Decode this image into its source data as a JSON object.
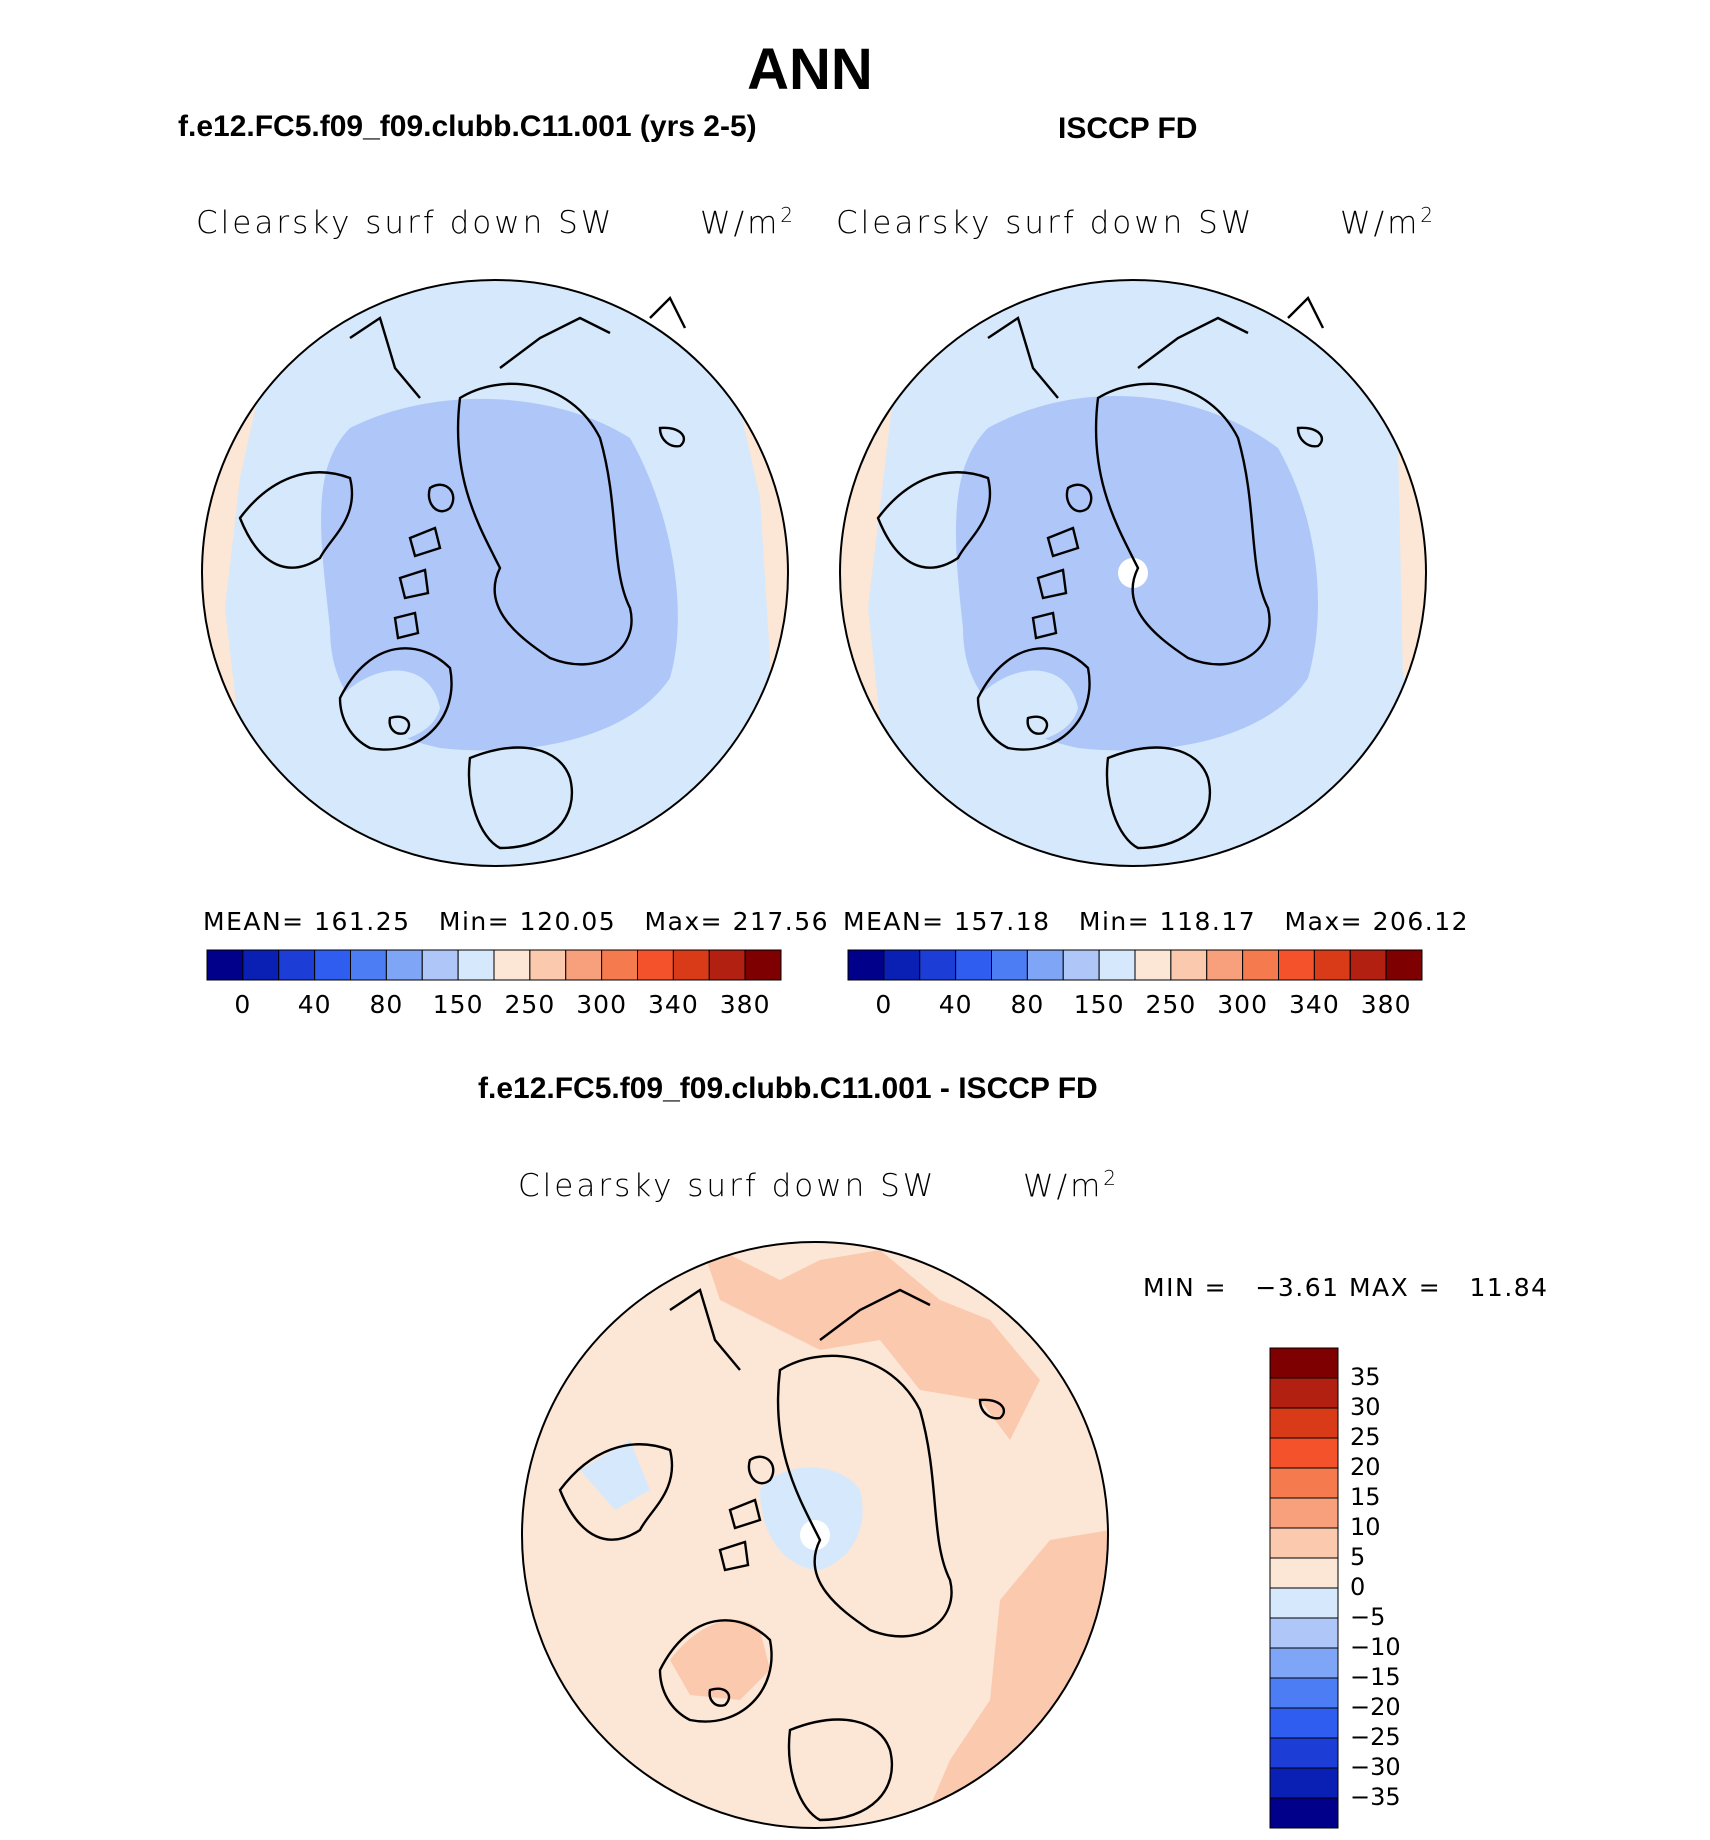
{
  "title": "ANN",
  "panels": [
    {
      "id": "model",
      "heading": "f.e12.FC5.f09_f09.clubb.C11.001 (yrs 2-5)",
      "variable": "Clearsky surf down SW",
      "units": "W/m",
      "units_sup": "2",
      "mean_label": "MEAN=",
      "mean_value": "161.25",
      "min_label": "Min=",
      "min_value": "120.05",
      "max_label": "Max=",
      "max_value": "217.56"
    },
    {
      "id": "obs",
      "heading": "ISCCP FD",
      "variable": "Clearsky surf down SW",
      "units": "W/m",
      "units_sup": "2",
      "mean_label": "MEAN=",
      "mean_value": "157.18",
      "min_label": "Min=",
      "min_value": "118.17",
      "max_label": "Max=",
      "max_value": "206.12"
    }
  ],
  "abs_colorbar": {
    "colors": [
      "#00008b",
      "#0a1fb4",
      "#1c3dd6",
      "#2e5df0",
      "#4d7df5",
      "#7fa6f6",
      "#aec7f8",
      "#d6e8fb",
      "#fce6d6",
      "#fbc9ad",
      "#f7a07b",
      "#f57a4d",
      "#f4522a",
      "#d93a18",
      "#b12010",
      "#7e0000"
    ],
    "tick_labels": [
      "0",
      "40",
      "80",
      "150",
      "250",
      "300",
      "340",
      "380"
    ]
  },
  "diff_panel": {
    "heading": "f.e12.FC5.f09_f09.clubb.C11.001 - ISCCP FD",
    "variable": "Clearsky surf down SW",
    "units": "W/m",
    "units_sup": "2",
    "min_label": "MIN =",
    "min_value": "−3.61",
    "max_label": "MAX =",
    "max_value": "11.84"
  },
  "diff_colorbar": {
    "colors_top_to_bottom": [
      "#7e0000",
      "#b12010",
      "#d93a18",
      "#f4522a",
      "#f57a4d",
      "#f7a07b",
      "#fbc9ad",
      "#fce6d6",
      "#d6e8fb",
      "#aec7f8",
      "#7fa6f6",
      "#4d7df5",
      "#2e5df0",
      "#1c3dd6",
      "#0a1fb4",
      "#00008b"
    ],
    "tick_labels": [
      "35",
      "30",
      "25",
      "20",
      "15",
      "10",
      "5",
      "0",
      "−5",
      "−10",
      "−15",
      "−20",
      "−25",
      "−30",
      "−35"
    ]
  },
  "map_colors": {
    "light_blue": "#d6e8fb",
    "mid_blue": "#aec7f8",
    "peach": "#fce6d6",
    "salmon": "#fbc9ad"
  }
}
